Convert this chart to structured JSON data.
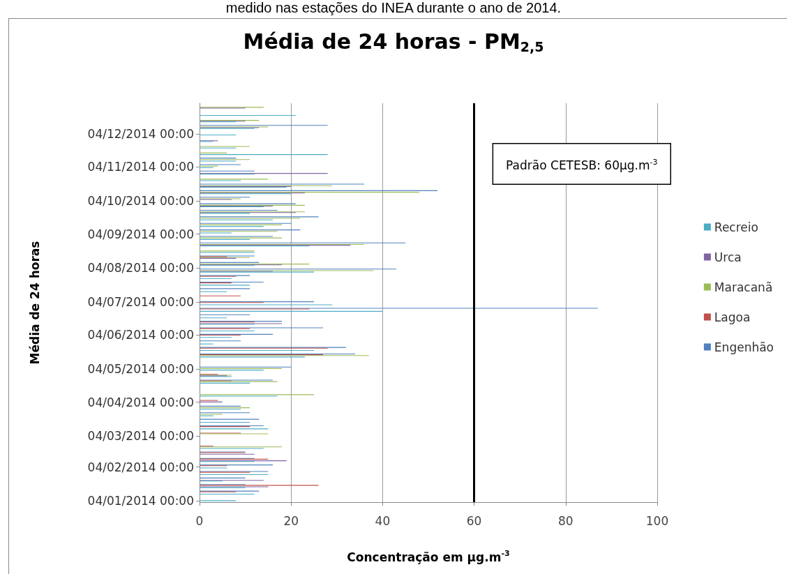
{
  "chart_data": {
    "type": "bar",
    "orientation": "horizontal",
    "title": "Média de 24 horas - PM$_{2,5}$",
    "xlabel": "Concentração em µg.m$^{-3}$",
    "ylabel": "Média de 24 horas",
    "annotations": [
      "medido nas estações do INEA durante o ano de 2014."
    ],
    "x": [
      "2014-01-04",
      "2014-01-10",
      "2014-01-16",
      "2014-01-22",
      "2014-01-28",
      "2014-02-03",
      "2014-02-09",
      "2014-02-15",
      "2014-02-21",
      "2014-02-27",
      "2014-03-05",
      "2014-03-11",
      "2014-03-17",
      "2014-03-23",
      "2014-03-29",
      "2014-04-04",
      "2014-04-10",
      "2014-04-16",
      "2014-04-22",
      "2014-04-28",
      "2014-05-04",
      "2014-05-10",
      "2014-05-16",
      "2014-05-22",
      "2014-05-28",
      "2014-06-03",
      "2014-06-09",
      "2014-06-15",
      "2014-06-21",
      "2014-06-27",
      "2014-07-03",
      "2014-07-09",
      "2014-07-15",
      "2014-07-21",
      "2014-07-27",
      "2014-08-02",
      "2014-08-08",
      "2014-08-14",
      "2014-08-20",
      "2014-08-26",
      "2014-09-01",
      "2014-09-07",
      "2014-09-13",
      "2014-09-19",
      "2014-09-25",
      "2014-10-01",
      "2014-10-07",
      "2014-10-13",
      "2014-10-19",
      "2014-10-25",
      "2014-10-31",
      "2014-11-06",
      "2014-11-12",
      "2014-11-18",
      "2014-11-24",
      "2014-11-30",
      "2014-12-06",
      "2014-12-12",
      "2014-12-18",
      "2014-12-24",
      "2014-12-30"
    ],
    "series": [
      {
        "name": "Engenhão",
        "color": "#4f81bd",
        "values": [
          null,
          13,
          10,
          10,
          15,
          16,
          12,
          10,
          null,
          null,
          null,
          14,
          13,
          11,
          9,
          null,
          null,
          null,
          16,
          null,
          20,
          null,
          34,
          32,
          9,
          16,
          27,
          18,
          11,
          87,
          25,
          null,
          11,
          14,
          11,
          43,
          13,
          12,
          null,
          45,
          16,
          22,
          20,
          26,
          17,
          21,
          11,
          52,
          36,
          null,
          12,
          9,
          8,
          null,
          null,
          null,
          null,
          28,
          null,
          null,
          null
        ]
      },
      {
        "name": "Lagoa",
        "color": "#c0504d",
        "values": [
          null,
          8,
          26,
          null,
          11,
          6,
          15,
          10,
          3,
          null,
          9,
          11,
          null,
          null,
          null,
          4,
          null,
          null,
          7,
          4,
          null,
          null,
          27,
          28,
          null,
          9,
          11,
          12,
          null,
          24,
          14,
          9,
          null,
          7,
          8,
          null,
          null,
          6,
          null,
          null,
          null,
          null,
          null,
          null,
          null,
          null,
          null,
          null,
          null,
          null,
          null,
          null,
          null,
          null,
          null,
          null,
          null,
          null,
          null,
          null,
          null
        ]
      },
      {
        "name": "Maracanã",
        "color": "#9bbb59",
        "values": [
          null,
          null,
          null,
          null,
          null,
          null,
          null,
          null,
          18,
          null,
          15,
          null,
          null,
          5,
          11,
          null,
          25,
          null,
          17,
          7,
          18,
          null,
          37,
          null,
          null,
          null,
          null,
          null,
          null,
          null,
          null,
          null,
          null,
          null,
          null,
          38,
          24,
          11,
          12,
          36,
          18,
          17,
          18,
          22,
          23,
          23,
          9,
          48,
          29,
          15,
          null,
          4,
          11,
          6,
          11,
          null,
          null,
          15,
          13,
          null,
          14
        ]
      },
      {
        "name": "Urca",
        "color": "#8064a2",
        "values": [
          null,
          null,
          15,
          14,
          null,
          null,
          19,
          12,
          null,
          null,
          null,
          null,
          null,
          null,
          null,
          5,
          null,
          null,
          null,
          6,
          null,
          null,
          null,
          null,
          null,
          null,
          null,
          18,
          null,
          null,
          null,
          null,
          null,
          null,
          null,
          16,
          18,
          8,
          null,
          33,
          null,
          null,
          null,
          null,
          21,
          16,
          7,
          23,
          20,
          null,
          28,
          null,
          null,
          null,
          null,
          4,
          null,
          13,
          10,
          null,
          10
        ]
      },
      {
        "name": "Recreio",
        "color": "#4bacc6",
        "values": [
          8,
          12,
          10,
          5,
          15,
          6,
          12,
          null,
          14,
          null,
          null,
          15,
          11,
          3,
          9,
          null,
          17,
          null,
          11,
          7,
          14,
          null,
          23,
          25,
          3,
          7,
          12,
          12,
          6,
          40,
          29,
          null,
          6,
          11,
          7,
          25,
          12,
          null,
          12,
          24,
          11,
          7,
          14,
          16,
          11,
          14,
          null,
          20,
          19,
          9,
          12,
          3,
          8,
          28,
          8,
          3,
          8,
          12,
          8,
          21,
          null
        ]
      }
    ],
    "xlim": [
      0,
      100
    ],
    "xticks": [
      0,
      20,
      40,
      60,
      80,
      100
    ],
    "ylim": [
      "2014-01-03",
      "2015-01-01"
    ],
    "yticks": [
      {
        "value": "2014-01-04",
        "label": "04/01/2014 00:00"
      },
      {
        "value": "2014-02-04",
        "label": "04/02/2014 00:00"
      },
      {
        "value": "2014-03-04",
        "label": "04/03/2014 00:00"
      },
      {
        "value": "2014-04-04",
        "label": "04/04/2014 00:00"
      },
      {
        "value": "2014-05-04",
        "label": "04/05/2014 00:00"
      },
      {
        "value": "2014-06-04",
        "label": "04/06/2014 00:00"
      },
      {
        "value": "2014-07-04",
        "label": "04/07/2014 00:00"
      },
      {
        "value": "2014-08-04",
        "label": "04/08/2014 00:00"
      },
      {
        "value": "2014-09-04",
        "label": "04/09/2014 00:00"
      },
      {
        "value": "2014-10-04",
        "label": "04/10/2014 00:00"
      },
      {
        "value": "2014-11-04",
        "label": "04/11/2014 00:00"
      },
      {
        "value": "2014-12-04",
        "label": "04/12/2014 00:00"
      }
    ],
    "ref_lines": [
      {
        "axis": "x",
        "value": 60,
        "label": "Padrão CETESB: 60µg.m$^{-3}$",
        "color": "#000000"
      }
    ],
    "grid": "x",
    "legend": "right"
  }
}
